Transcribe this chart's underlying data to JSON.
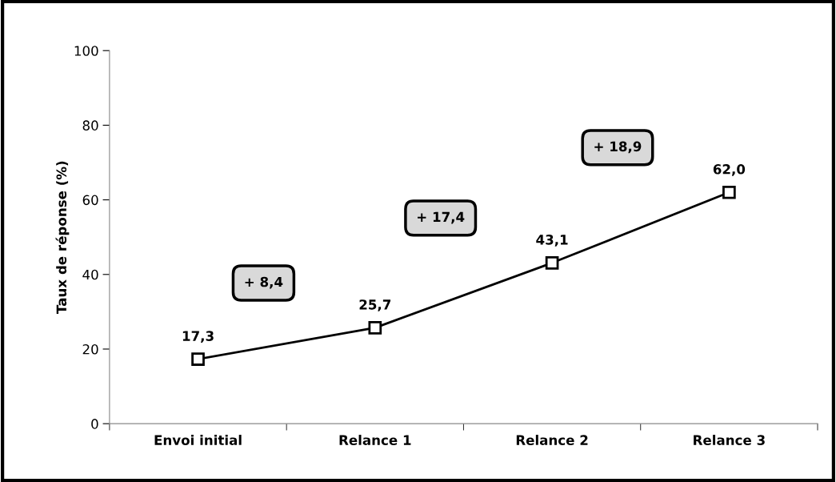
{
  "chart_data": {
    "type": "line",
    "ylabel": "Taux de réponse (%)",
    "categories": [
      "Envoi initial",
      "Relance 1",
      "Relance 2",
      "Relance 3"
    ],
    "values": [
      17.3,
      25.7,
      43.1,
      62.0
    ],
    "value_labels": [
      "17,3",
      "25,7",
      "43,1",
      "62,0"
    ],
    "color": "#000000",
    "marker": "square",
    "line_style": "solid",
    "ylim": [
      0,
      100
    ],
    "yticks": [
      0,
      20,
      40,
      60,
      80,
      100
    ],
    "grid": false,
    "legend": false,
    "annotations": [
      "+ 8,4",
      "+ 17,4",
      "+ 18,9"
    ]
  }
}
